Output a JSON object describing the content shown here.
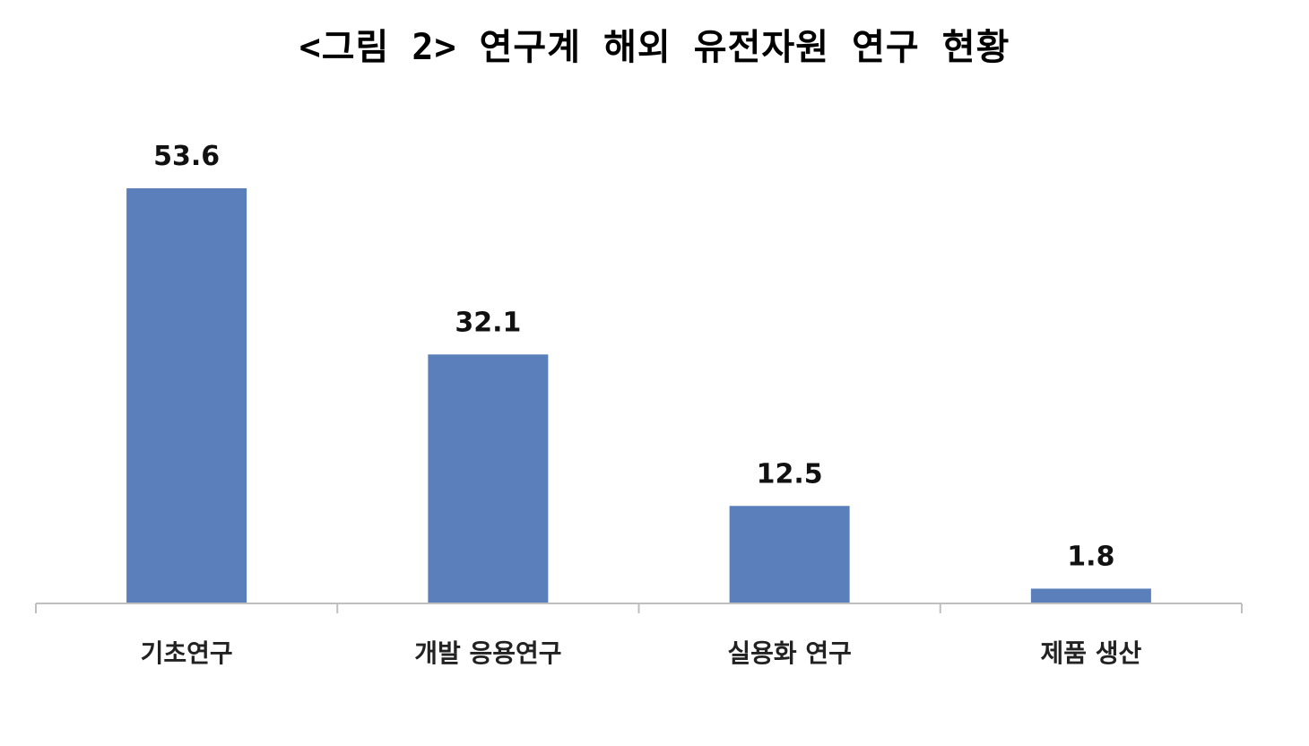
{
  "chart_data": {
    "type": "bar",
    "title": "<그림 2> 연구계 해외 유전자원 연구 현황",
    "categories": [
      "기초연구",
      "개발 응용연구",
      "실용화 연구",
      "제품 생산"
    ],
    "values": [
      53.6,
      32.1,
      12.5,
      1.8
    ],
    "value_labels": [
      "53.6",
      "32.1",
      "12.5",
      "1.8"
    ],
    "xlabel": "",
    "ylabel": "",
    "ylim": [
      0,
      53.6
    ],
    "grid": false,
    "legend": "none",
    "bar_color": "#5b7fba",
    "axis_color": "#bfbfbf"
  }
}
